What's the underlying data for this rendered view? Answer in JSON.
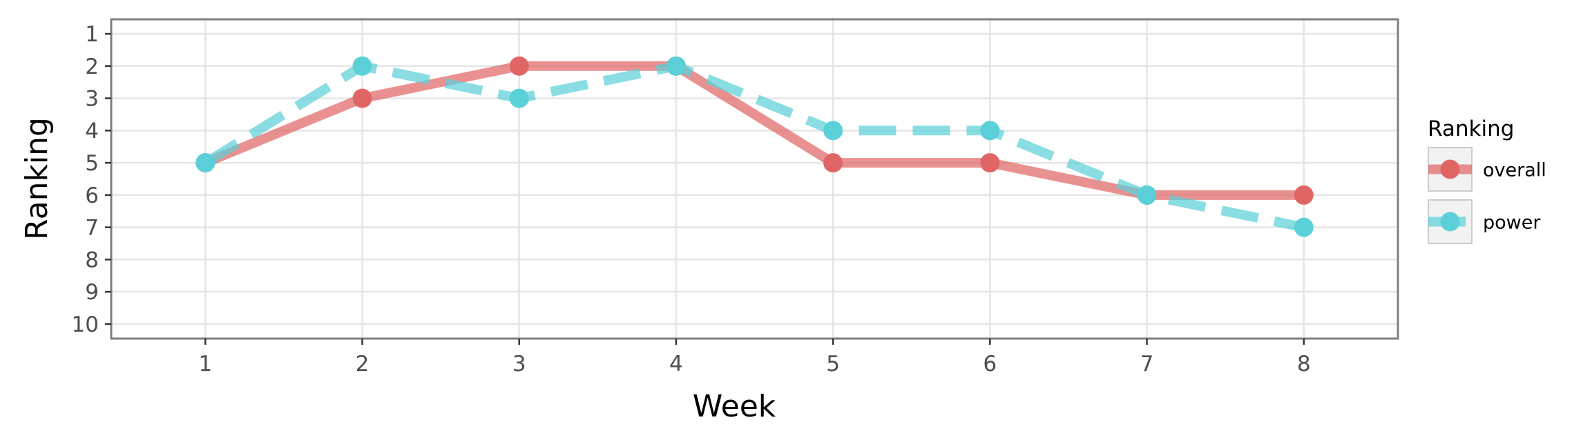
{
  "chart_data": {
    "type": "line",
    "xlabel": "Week",
    "ylabel": "Ranking",
    "x": [
      1,
      2,
      3,
      4,
      5,
      6,
      7,
      8
    ],
    "x_ticks": [
      "1",
      "2",
      "3",
      "4",
      "5",
      "6",
      "7",
      "8"
    ],
    "y_ticks": [
      "1",
      "2",
      "3",
      "4",
      "5",
      "6",
      "7",
      "8",
      "9",
      "10"
    ],
    "xlim": [
      0.4,
      8.6
    ],
    "ylim": [
      10.45,
      0.55
    ],
    "y_reversed": true,
    "grid": true,
    "legend_title": "Ranking",
    "legend_position": "right",
    "series": [
      {
        "name": "overall",
        "values": [
          5,
          3,
          2,
          2,
          5,
          5,
          6,
          6
        ],
        "color": "#e06666",
        "line_style": "solid"
      },
      {
        "name": "power",
        "values": [
          5,
          2,
          3,
          2,
          4,
          4,
          6,
          7
        ],
        "color": "#5bd0d8",
        "line_style": "dashed"
      }
    ]
  }
}
